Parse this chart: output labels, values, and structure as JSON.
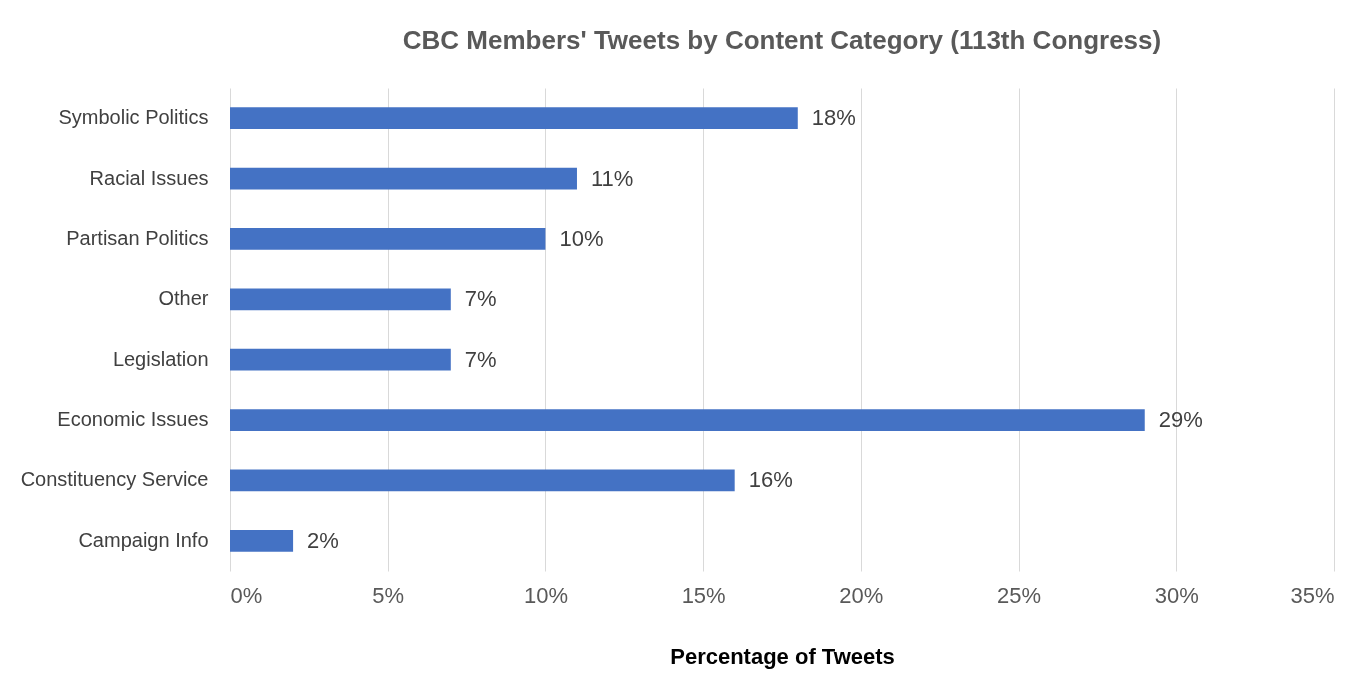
{
  "chart_data": {
    "type": "bar",
    "orientation": "horizontal",
    "title": "CBC Members' Tweets by Content Category (113th Congress)",
    "xlabel": "Percentage of Tweets",
    "categories": [
      "Symbolic Politics",
      "Racial Issues",
      "Partisan Politics",
      "Other",
      "Legislation",
      "Economic Issues",
      "Constituency Service",
      "Campaign Info"
    ],
    "values": [
      18,
      11,
      10,
      7,
      7,
      29,
      16,
      2
    ],
    "value_labels": [
      "18%",
      "11%",
      "10%",
      "7%",
      "7%",
      "29%",
      "16%",
      "2%"
    ],
    "color": "#4472c4",
    "xlim": [
      0,
      35
    ],
    "xticks": [
      {
        "value": 0,
        "label": "0%"
      },
      {
        "value": 5,
        "label": "5%"
      },
      {
        "value": 10,
        "label": "10%"
      },
      {
        "value": 15,
        "label": "15%"
      },
      {
        "value": 20,
        "label": "20%"
      },
      {
        "value": 25,
        "label": "25%"
      },
      {
        "value": 30,
        "label": "30%"
      },
      {
        "value": 35,
        "label": "35%"
      }
    ],
    "grid": "x"
  }
}
